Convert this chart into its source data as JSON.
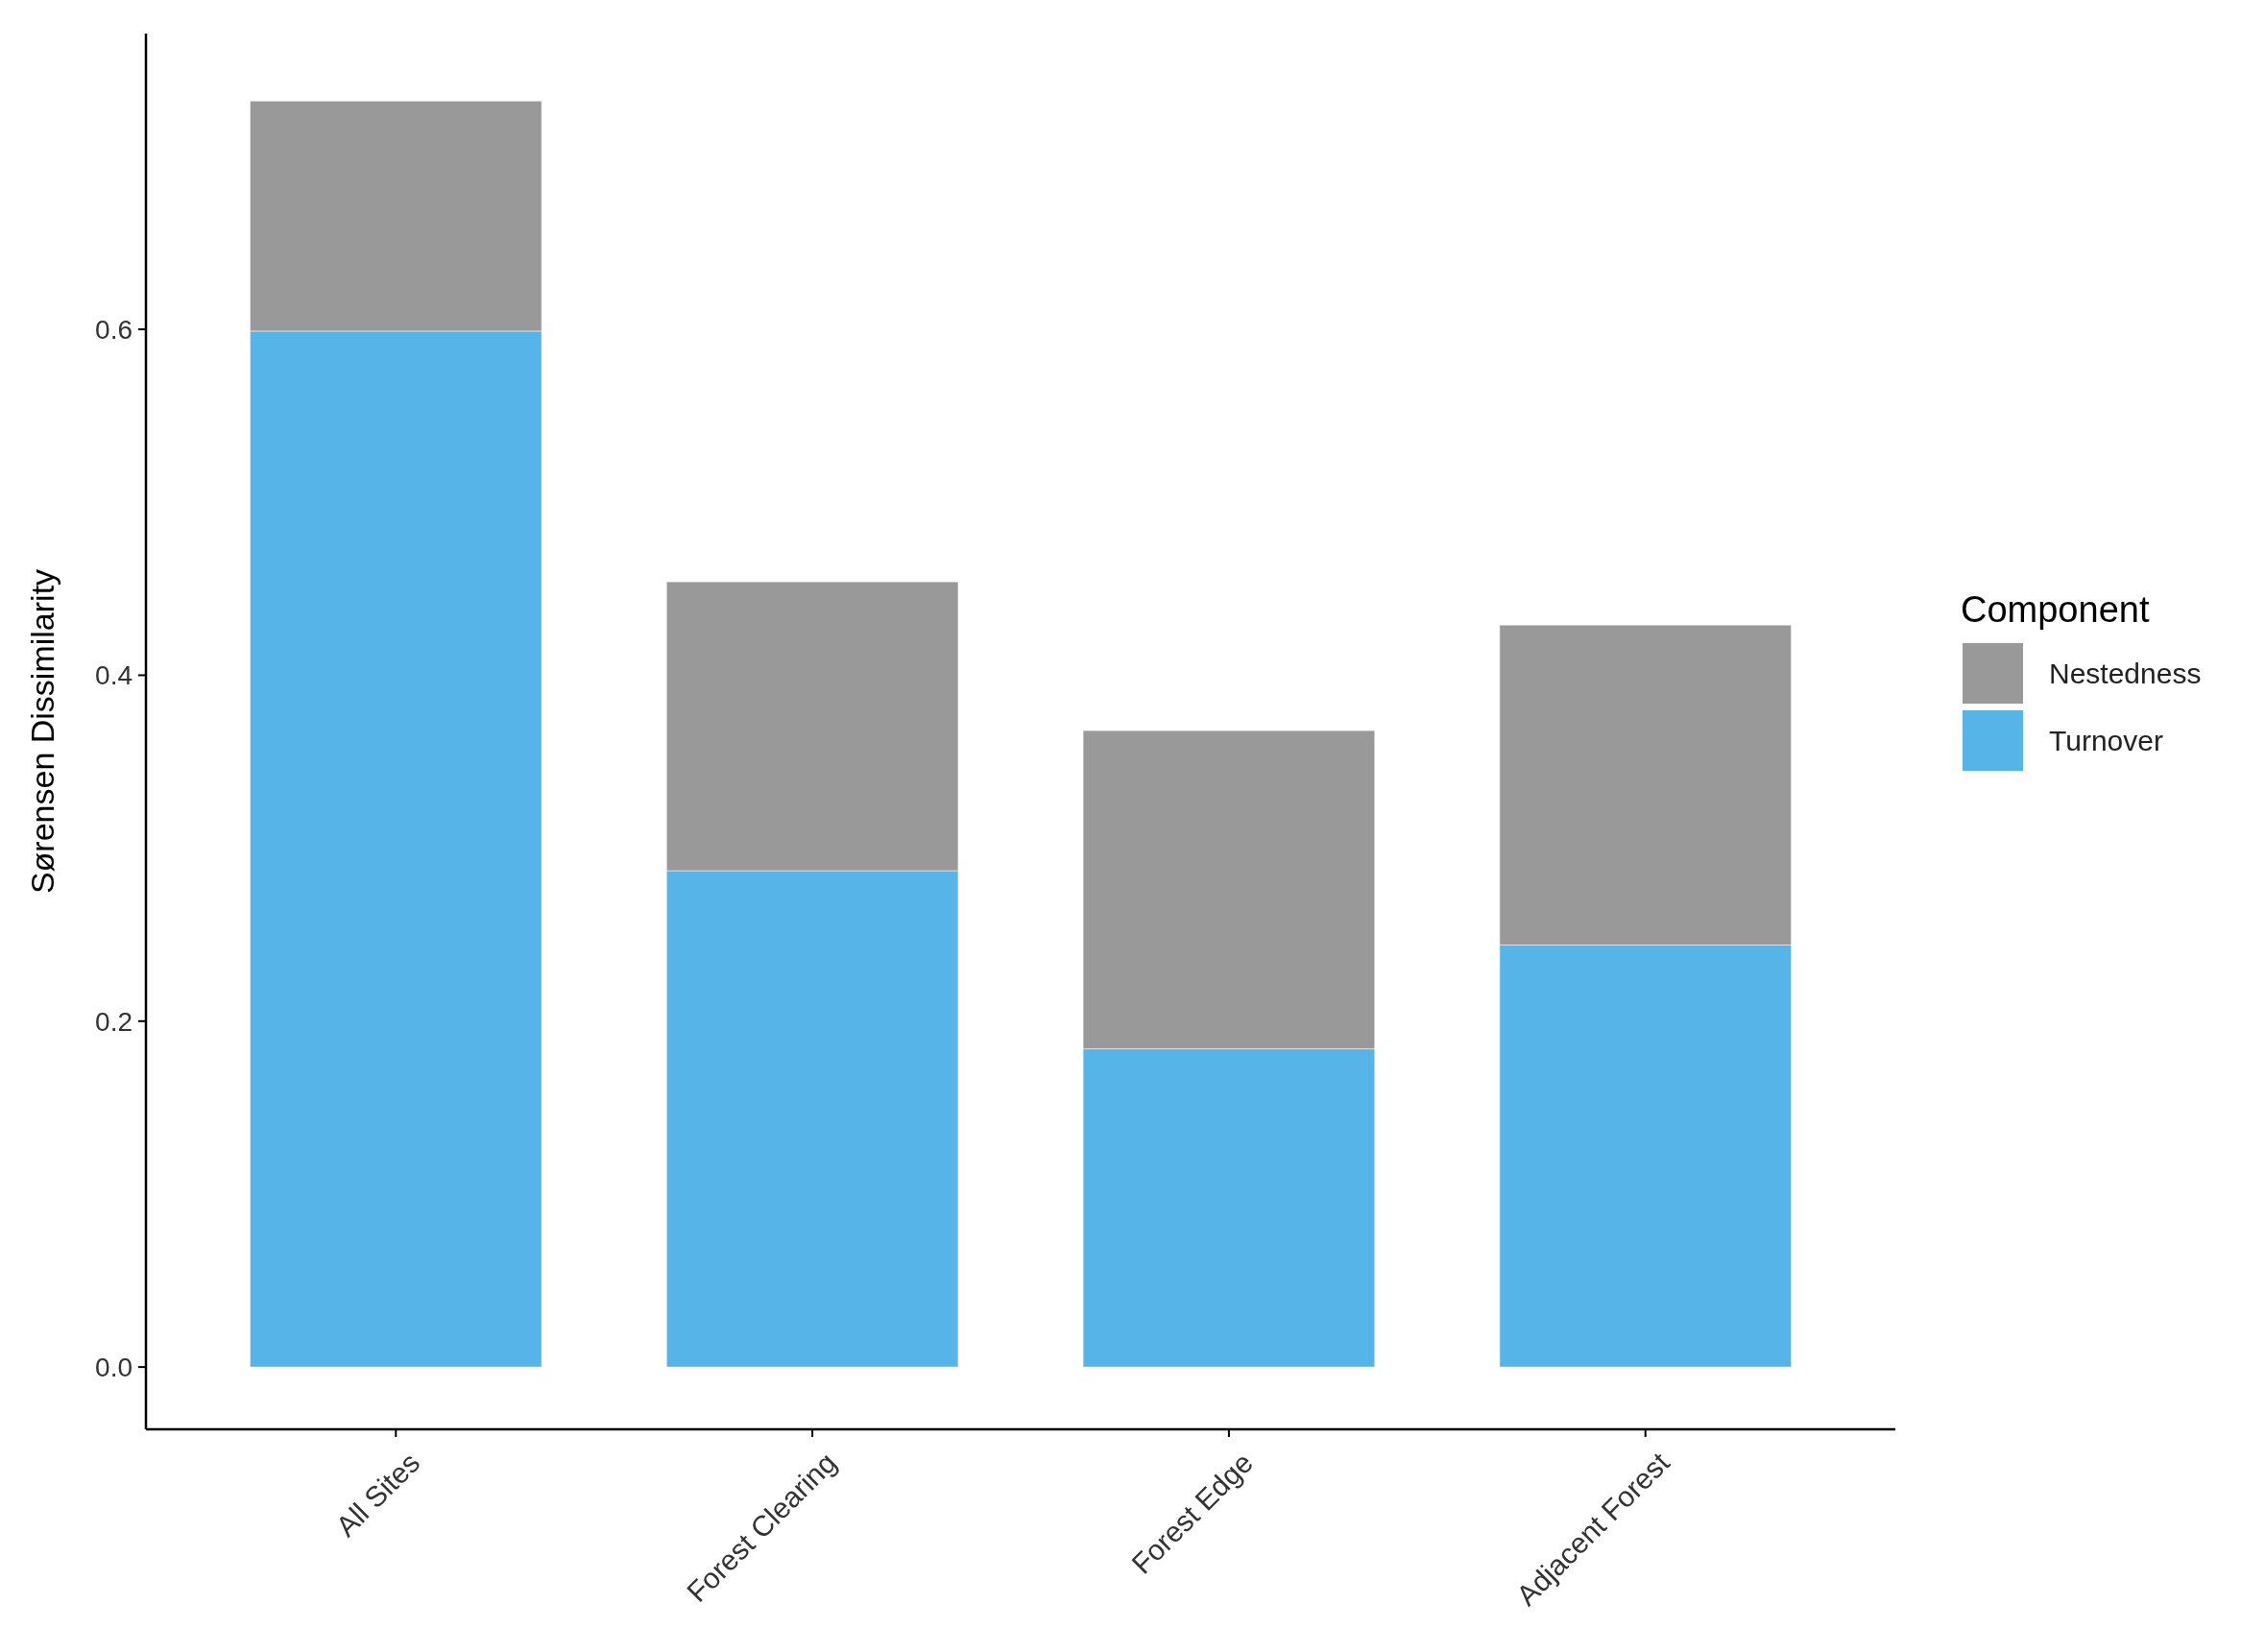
{
  "chart_data": {
    "type": "bar",
    "stacked": true,
    "ylabel": "Sørensen Dissimilarity",
    "legend_title": "Component",
    "legend": "right",
    "categories": [
      "All Sites",
      "Forest Clearing",
      "Forest Edge",
      "Adjacent Forest"
    ],
    "series": [
      {
        "name": "Turnover",
        "color": "#56b4e9",
        "values": [
          0.599,
          0.287,
          0.184,
          0.244
        ]
      },
      {
        "name": "Nestedness",
        "color": "#999999",
        "values": [
          0.133,
          0.167,
          0.184,
          0.185
        ]
      }
    ],
    "ylim": [
      -0.036,
      0.771
    ],
    "yticks": [
      {
        "value": 0,
        "label": "0.0"
      },
      {
        "value": 0.2,
        "label": "0.2"
      },
      {
        "value": 0.4,
        "label": "0.4"
      },
      {
        "value": 0.6,
        "label": "0.6"
      }
    ]
  }
}
